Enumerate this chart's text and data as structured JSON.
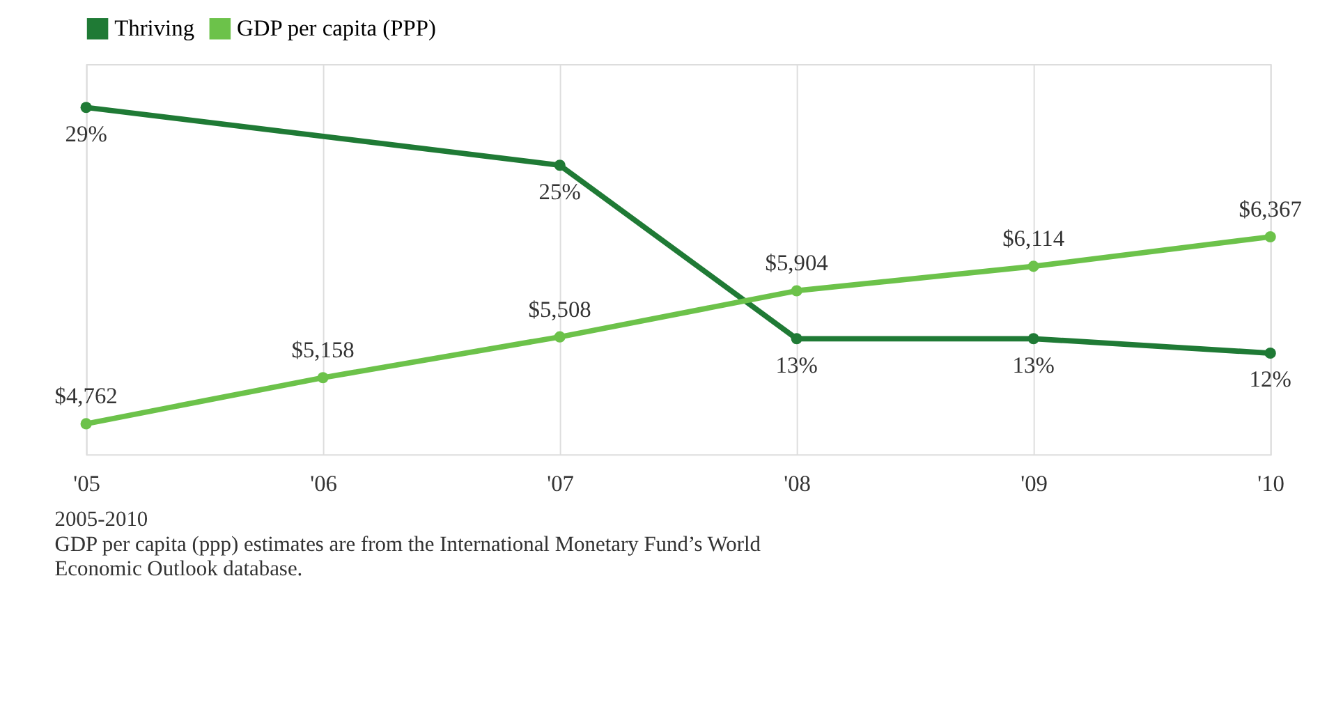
{
  "chart_data": {
    "type": "line",
    "categories": [
      "'05",
      "'06",
      "'07",
      "'08",
      "'09",
      "'10"
    ],
    "series": [
      {
        "name": "Thriving",
        "color": "#1f7a35",
        "values": [
          29,
          null,
          25,
          13,
          13,
          12
        ],
        "value_labels": [
          "29%",
          null,
          "25%",
          "13%",
          "13%",
          "12%"
        ]
      },
      {
        "name": "GDP per capita (PPP)",
        "color": "#6cc24a",
        "axis": "y2",
        "values": [
          4762,
          5158,
          5508,
          5904,
          6114,
          6367
        ],
        "value_labels": [
          "$4,762",
          "$5,158",
          "$5,508",
          "$5,904",
          "$6,114",
          "$6,367"
        ]
      }
    ],
    "ylim": [
      5,
      32
    ],
    "y2lim": [
      4500,
      7850
    ],
    "tick_labels": "x",
    "grid": "x",
    "legend": "top left",
    "marker": "circle",
    "line_style": "solid",
    "annotations": [
      "2005-2010",
      "GDP per capita (ppp) estimates are from the International Monetary Fund’s World Economic Outlook database."
    ]
  }
}
